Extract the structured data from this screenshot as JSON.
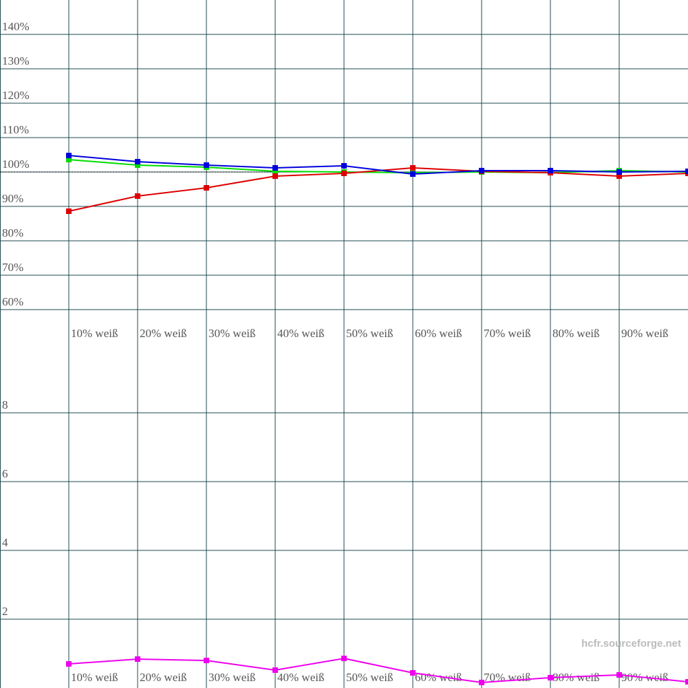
{
  "chart_data": [
    {
      "type": "line",
      "categories": [
        "10% weiß",
        "20% weiß",
        "30% weiß",
        "40% weiß",
        "50% weiß",
        "60% weiß",
        "70% weiß",
        "80% weiß",
        "90% weiß",
        null
      ],
      "series": [
        {
          "color": "#00dd00",
          "values": [
            103.6,
            102,
            101.4,
            100.2,
            100,
            99.8,
            100,
            99.8,
            100.4,
            100
          ]
        },
        {
          "color": "#dd0000",
          "values": [
            88.6,
            93,
            95.4,
            98.8,
            99.6,
            101.2,
            100.2,
            99.8,
            98.8,
            99.6
          ]
        },
        {
          "color": "#0000dd",
          "values": [
            104.8,
            103,
            102,
            101.2,
            101.8,
            99.4,
            100.4,
            100.4,
            100,
            100.2
          ]
        }
      ],
      "ylim": [
        60,
        150
      ],
      "yticks": [
        {
          "value": 60,
          "label": "60%"
        },
        {
          "value": 70,
          "label": "70%"
        },
        {
          "value": 80,
          "label": "80%"
        },
        {
          "value": 90,
          "label": "90%"
        },
        {
          "value": 100,
          "label": "100%"
        },
        {
          "value": 110,
          "label": "110%"
        },
        {
          "value": 120,
          "label": "120%"
        },
        {
          "value": 130,
          "label": "130%"
        },
        {
          "value": 140,
          "label": "140%"
        }
      ],
      "reference_line": 100,
      "grid": true
    },
    {
      "type": "line",
      "categories": [
        "10% weiß",
        "20% weiß",
        "30% weiß",
        "40% weiß",
        "50% weiß",
        "60% weiß",
        "70% weiß",
        "80% weiß",
        "90% weiß",
        null
      ],
      "series": [
        {
          "color": "#ee00ee",
          "values": [
            0.7,
            0.84,
            0.8,
            0.52,
            0.86,
            0.44,
            0.16,
            0.3,
            0.38,
            0.18
          ]
        }
      ],
      "ylim": [
        0,
        10
      ],
      "yticks": [
        2,
        4,
        6,
        8
      ],
      "grid": true
    }
  ],
  "watermark": "hcfr.sourceforge.net"
}
